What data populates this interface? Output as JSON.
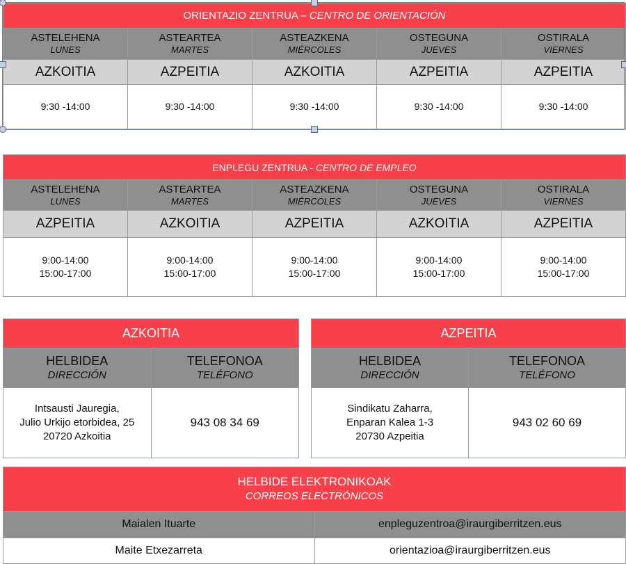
{
  "orientation": {
    "title": "ORIENTAZIO ZENTRUA – ",
    "title_es": "CENTRO DE ORIENTACIÓN",
    "days": [
      {
        "eu": "ASTELEHENA",
        "es": "LUNES"
      },
      {
        "eu": "ASTEARTEA",
        "es": "MARTES"
      },
      {
        "eu": "ASTEAZKENA",
        "es": "MIÉRCOLES"
      },
      {
        "eu": "OSTEGUNA",
        "es": "JUEVES"
      },
      {
        "eu": "OSTIRALA",
        "es": "VIERNES"
      }
    ],
    "towns": [
      "AZKOITIA",
      "AZPEITIA",
      "AZKOITIA",
      "AZPEITIA",
      "AZPEITIA"
    ],
    "hours": [
      "9:30 -14:00",
      "9:30 -14:00",
      "9:30 -14:00",
      "9:30 -14:00",
      "9:30 -14:00"
    ]
  },
  "employment": {
    "title": "ENPLEGU ZENTRUA - ",
    "title_es": "CENTRO DE EMPLEO",
    "days": [
      {
        "eu": "ASTELEHENA",
        "es": "LUNES"
      },
      {
        "eu": "ASTEARTEA",
        "es": "MARTES"
      },
      {
        "eu": "ASTEAZKENA",
        "es": "MIÉRCOLES"
      },
      {
        "eu": "OSTEGUNA",
        "es": "JUEVES"
      },
      {
        "eu": "OSTIRALA",
        "es": "VIERNES"
      }
    ],
    "towns": [
      "AZPEITIA",
      "AZKOITIA",
      "AZPEITIA",
      "AZKOITIA",
      "AZPEITIA"
    ],
    "hours": [
      [
        "9:00-14:00",
        "15:00-17:00"
      ],
      [
        "9:00-14:00",
        "15:00-17:00"
      ],
      [
        "9:00-14:00",
        "15:00-17:00"
      ],
      [
        "9:00-14:00",
        "15:00-17:00"
      ],
      [
        "9:00-14:00",
        "15:00-17:00"
      ]
    ]
  },
  "offices": [
    {
      "town": "AZKOITIA",
      "addr_h": "HELBIDEA",
      "addr_h_es": "DIRECCIÓN",
      "tel_h": "TELEFONOA",
      "tel_h_es": "TELÉFONO",
      "address": [
        "Intsausti Jauregia,",
        "Julio Urkijo etorbidea, 25",
        "20720 Azkoitia"
      ],
      "phone": "943 08 34 69"
    },
    {
      "town": "AZPEITIA",
      "addr_h": "HELBIDEA",
      "addr_h_es": "DIRECCIÓN",
      "tel_h": "TELEFONOA",
      "tel_h_es": "TELÉFONO",
      "address": [
        "Sindikatu Zaharra,",
        "Enparan Kalea 1-3",
        "20730 Azpeitia"
      ],
      "phone": "943 02 60 69"
    }
  ],
  "emails": {
    "title": "HELBIDE ELEKTRONIKOAK",
    "title_es": "CORREOS ELECTRÓNICOS",
    "rows": [
      {
        "name": "Maialen Ituarte",
        "email": "enpleguzentroa@iraurgiberritzen.eus"
      },
      {
        "name": "Maite Etxezarreta",
        "email": "orientazioa@iraurgiberritzen.eus"
      }
    ]
  },
  "colors": {
    "red": "#f7404a",
    "dark_gray": "#8f8f8f",
    "light_gray": "#d3d3d3"
  }
}
